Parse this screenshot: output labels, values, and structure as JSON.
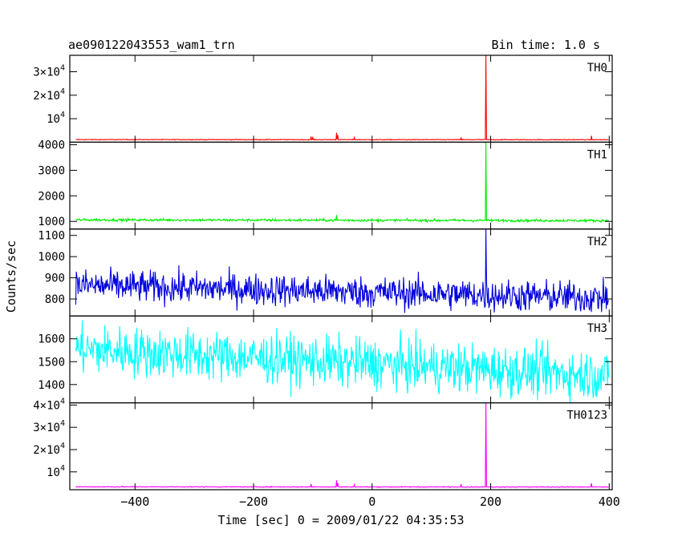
{
  "chart_data": {
    "type": "line",
    "title": "ae090122043553_wam1_trn",
    "bin_time": "Bin time: 1.0 s",
    "xlabel": "Time [sec] 0 = 2009/01/22 04:35:53",
    "ylabel": "Counts/sec",
    "xlim": [
      -510,
      405
    ],
    "x_ticks": [
      -400,
      -200,
      0,
      200,
      400
    ],
    "panels": [
      {
        "name": "TH0",
        "color": "#ff0000",
        "ylim": [
          0,
          37000
        ],
        "y_ticks": [
          10000,
          20000,
          30000
        ],
        "y_tick_labels": [
          "10^4",
          "2×10^4",
          "3×10^4"
        ],
        "baseline": 1100,
        "noise": 80,
        "trend_end": 1050,
        "spikes": [
          {
            "x": -103,
            "y": 2400
          },
          {
            "x": -100,
            "y": 2000
          },
          {
            "x": -60,
            "y": 4000
          },
          {
            "x": -58,
            "y": 3000
          },
          {
            "x": -30,
            "y": 2000
          },
          {
            "x": 150,
            "y": 2000
          },
          {
            "x": 192,
            "y": 37000
          },
          {
            "x": 370,
            "y": 2700
          }
        ]
      },
      {
        "name": "TH1",
        "color": "#00ee00",
        "ylim": [
          700,
          4100
        ],
        "y_ticks": [
          1000,
          2000,
          3000,
          4000
        ],
        "y_tick_labels": [
          "1000",
          "2000",
          "3000",
          "4000"
        ],
        "baseline": 1060,
        "noise": 25,
        "trend_end": 1030,
        "spikes": [
          {
            "x": -60,
            "y": 1250
          },
          {
            "x": 192,
            "y": 4100
          }
        ]
      },
      {
        "name": "TH2",
        "color": "#0000dd",
        "ylim": [
          720,
          1130
        ],
        "y_ticks": [
          800,
          900,
          1000,
          1100
        ],
        "y_tick_labels": [
          "800",
          "900",
          "1000",
          "1100"
        ],
        "baseline": 865,
        "noise": 38,
        "trend_end": 805,
        "spikes": [
          {
            "x": 192,
            "y": 1130
          }
        ]
      },
      {
        "name": "TH3",
        "color": "#00ffff",
        "ylim": [
          1320,
          1700
        ],
        "y_ticks": [
          1400,
          1500,
          1600
        ],
        "y_tick_labels": [
          "1400",
          "1500",
          "1600"
        ],
        "baseline": 1555,
        "noise": 55,
        "trend_end": 1440,
        "spikes": []
      },
      {
        "name": "TH0123",
        "color": "#ff00ff",
        "ylim": [
          2000,
          41000
        ],
        "y_ticks": [
          10000,
          20000,
          30000,
          40000
        ],
        "y_tick_labels": [
          "10^4",
          "2×10^4",
          "3×10^4",
          "4×10^4"
        ],
        "baseline": 3300,
        "noise": 90,
        "trend_end": 3200,
        "spikes": [
          {
            "x": -103,
            "y": 4600
          },
          {
            "x": -60,
            "y": 6200
          },
          {
            "x": -58,
            "y": 5000
          },
          {
            "x": -30,
            "y": 4300
          },
          {
            "x": 150,
            "y": 4500
          },
          {
            "x": 192,
            "y": 41000
          },
          {
            "x": 370,
            "y": 4900
          }
        ]
      }
    ]
  }
}
